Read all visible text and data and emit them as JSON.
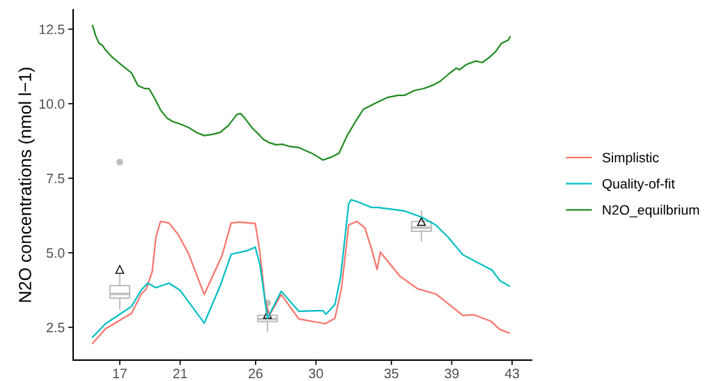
{
  "chart_data": {
    "type": "line",
    "ylabel": "N2O concentrations (nmol l−1)",
    "xlim": [
      13.91,
      44.29
    ],
    "ylim": [
      1.4,
      13.15
    ],
    "xticks": [
      17,
      21,
      26,
      30,
      35,
      39,
      43
    ],
    "yticks": [
      {
        "value": 2.5,
        "label": "2.5"
      },
      {
        "value": 5,
        "label": "5.0"
      },
      {
        "value": 7.5,
        "label": "7.5"
      },
      {
        "value": 10,
        "label": "10.0"
      },
      {
        "value": 12.5,
        "label": "12.5"
      }
    ],
    "grid": false,
    "legend": "right",
    "marker": "none",
    "line_style": "solid",
    "series": [
      {
        "type": "box",
        "color": "#bebebe",
        "x": [
          17,
          26.79,
          36.99
        ],
        "boxes": [
          {
            "low": 3.11,
            "q1": 3.48,
            "median": 3.62,
            "q3": 3.9,
            "high": 4.3,
            "mean": 4.44,
            "outliers": [
              8.04
            ]
          },
          {
            "low": 2.38,
            "q1": 2.69,
            "median": 2.78,
            "q3": 2.9,
            "high": 3.01,
            "mean": 2.93,
            "outliers": [
              3.32
            ]
          },
          {
            "low": 5.4,
            "q1": 5.72,
            "median": 5.84,
            "q3": 6.05,
            "high": 6.4,
            "mean": 6.05
          }
        ]
      },
      {
        "name": "Simplistic",
        "color": "#f8766d",
        "x": [
          15.2,
          16.06,
          17.78,
          18.41,
          18.76,
          19.15,
          19.4,
          19.7,
          20.26,
          20.87,
          21.53,
          22.6,
          23.78,
          24.38,
          24.91,
          25.98,
          26.29,
          26.63,
          26.92,
          27.7,
          28.86,
          30.61,
          31.26,
          31.7,
          32.17,
          32.71,
          33.24,
          33.68,
          34.05,
          34.27,
          35.57,
          36.74,
          37.94,
          39.74,
          40.47,
          41.58,
          42.18,
          42.82
        ],
        "values": [
          1.96,
          2.45,
          2.97,
          3.6,
          3.79,
          4.37,
          5.54,
          6.05,
          6.0,
          5.61,
          5.0,
          3.6,
          4.91,
          6.0,
          6.03,
          5.98,
          5.0,
          3.43,
          2.9,
          3.6,
          2.78,
          2.62,
          2.8,
          3.83,
          5.93,
          6.05,
          5.84,
          5.14,
          4.44,
          5.02,
          4.21,
          3.79,
          3.62,
          2.9,
          2.92,
          2.71,
          2.43,
          2.31
        ]
      },
      {
        "name": "Quality-of-fit",
        "color": "#00bfc4",
        "x": [
          15.2,
          16.06,
          17.78,
          18.41,
          18.85,
          19.4,
          20.26,
          21.0,
          22.6,
          23.67,
          24.38,
          25.45,
          25.98,
          26.29,
          26.79,
          27.7,
          28.86,
          30.46,
          30.67,
          31.26,
          31.64,
          32.17,
          32.33,
          32.77,
          33.68,
          34.11,
          35.88,
          37.03,
          37.94,
          38.75,
          39.74,
          40.72,
          41.67,
          42.18,
          42.82
        ],
        "values": [
          2.17,
          2.62,
          3.2,
          3.74,
          3.98,
          3.83,
          3.98,
          3.74,
          2.64,
          3.91,
          4.95,
          5.07,
          5.19,
          4.6,
          2.8,
          3.71,
          3.04,
          3.06,
          2.94,
          3.27,
          4.21,
          6.64,
          6.78,
          6.71,
          6.52,
          6.52,
          6.4,
          6.19,
          5.93,
          5.53,
          4.93,
          4.67,
          4.42,
          4.07,
          3.88
        ]
      },
      {
        "name": "N2O_equilbrium",
        "color": "#228b22",
        "x": [
          15.2,
          15.41,
          15.62,
          15.84,
          16.06,
          16.48,
          16.92,
          17.34,
          17.78,
          18.2,
          18.63,
          18.93,
          19.28,
          19.7,
          20.14,
          20.56,
          21.0,
          21.53,
          22.07,
          22.6,
          23.15,
          23.67,
          24.22,
          24.75,
          25.01,
          25.29,
          25.82,
          26.29,
          26.5,
          26.92,
          27.36,
          27.78,
          28.22,
          28.86,
          29.29,
          29.72,
          30.18,
          30.46,
          30.99,
          31.53,
          32.07,
          32.61,
          33.14,
          33.95,
          34.76,
          35.44,
          35.88,
          36.52,
          37.16,
          37.8,
          38.23,
          38.88,
          39.3,
          39.52,
          39.95,
          40.6,
          41.02,
          41.46,
          41.88,
          42.31,
          42.74,
          42.87
        ],
        "values": [
          12.62,
          12.27,
          12.03,
          11.96,
          11.8,
          11.57,
          11.38,
          11.21,
          11.03,
          10.61,
          10.51,
          10.51,
          10.21,
          9.79,
          9.51,
          9.39,
          9.32,
          9.21,
          9.04,
          8.93,
          8.97,
          9.04,
          9.28,
          9.63,
          9.67,
          9.51,
          9.16,
          8.93,
          8.81,
          8.69,
          8.62,
          8.64,
          8.57,
          8.53,
          8.43,
          8.34,
          8.2,
          8.11,
          8.2,
          8.34,
          8.93,
          9.39,
          9.81,
          10.02,
          10.21,
          10.28,
          10.28,
          10.44,
          10.51,
          10.63,
          10.75,
          11.03,
          11.19,
          11.14,
          11.31,
          11.43,
          11.38,
          11.54,
          11.73,
          12.03,
          12.13,
          12.24
        ]
      }
    ]
  }
}
